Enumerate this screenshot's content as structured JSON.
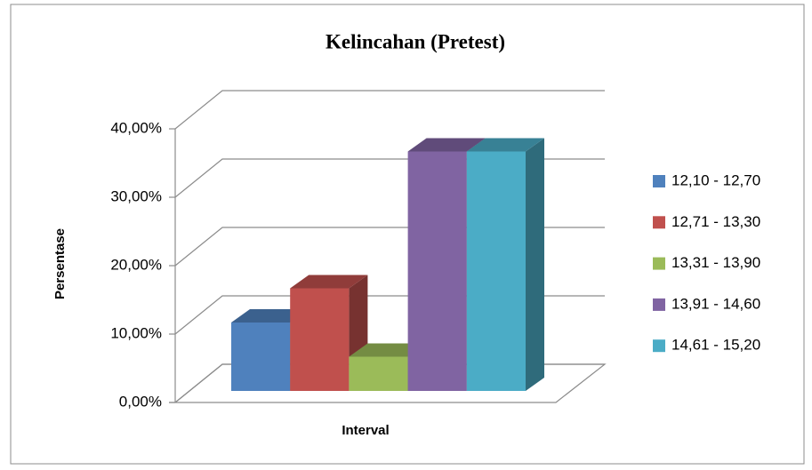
{
  "chart_data": {
    "type": "bar3d",
    "title": "Kelincahan (Pretest)",
    "x_label": "Interval",
    "y_label": "Persentase",
    "categories": [
      null
    ],
    "series": [
      {
        "name": "12,10 - 12,70",
        "color": "#4f81bd",
        "values": [
          10
        ]
      },
      {
        "name": "12,71 - 13,30",
        "color": "#c0504d",
        "values": [
          15
        ]
      },
      {
        "name": "13,31 - 13,90",
        "color": "#9bbb59",
        "values": [
          5
        ]
      },
      {
        "name": "13,91 - 14,60",
        "color": "#8064a2",
        "values": [
          35
        ]
      },
      {
        "name": "14,61 - 15,20",
        "color": "#4bacc6",
        "values": [
          35
        ]
      }
    ],
    "ylim": [
      0,
      40
    ],
    "yticks": [
      {
        "value": 0,
        "label": "0,00%"
      },
      {
        "value": 10,
        "label": "10,00%"
      },
      {
        "value": 20,
        "label": "20,00%"
      },
      {
        "value": 30,
        "label": "30,00%"
      },
      {
        "value": 40,
        "label": "40,00%"
      }
    ],
    "grid": true,
    "legend": "right"
  }
}
